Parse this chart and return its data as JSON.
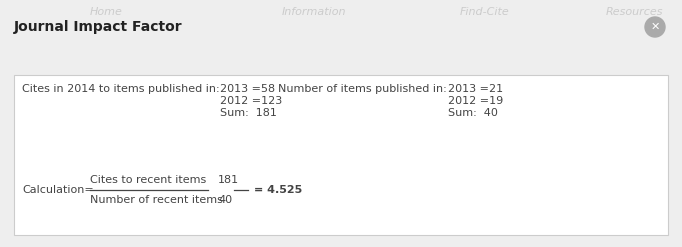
{
  "title": "Journal Impact Factor",
  "bg_color": "#eeeeee",
  "panel_bg": "#ffffff",
  "title_color": "#222222",
  "close_btn_color": "#aaaaaa",
  "close_btn_x_color": "#ffffff",
  "border_color": "#cccccc",
  "text_color": "#444444",
  "watermark_color": "#cccccc",
  "line1_label": "Cites in 2014 to items published in:",
  "cites_2013": "2013 =58",
  "cites_2012": "2012 =123",
  "cites_sum": "Sum:  181",
  "num_label": "Number of items published in:",
  "num_2013": "2013 =21",
  "num_2012": "2012 =19",
  "num_sum": "Sum:  40",
  "watermarks": [
    [
      "Home",
      0.155
    ],
    [
      "Information",
      0.46
    ],
    [
      "Find-Cite",
      0.71
    ],
    [
      "Resources",
      0.93
    ]
  ],
  "calc_label": "Calculation=",
  "numerator_text": "Cites to recent items",
  "numerator_value": "181",
  "denominator_text": "Number of recent items",
  "denominator_value": "40",
  "result": "= 4.525",
  "font_size_title": 10,
  "font_size_body": 8,
  "font_size_watermark": 8
}
